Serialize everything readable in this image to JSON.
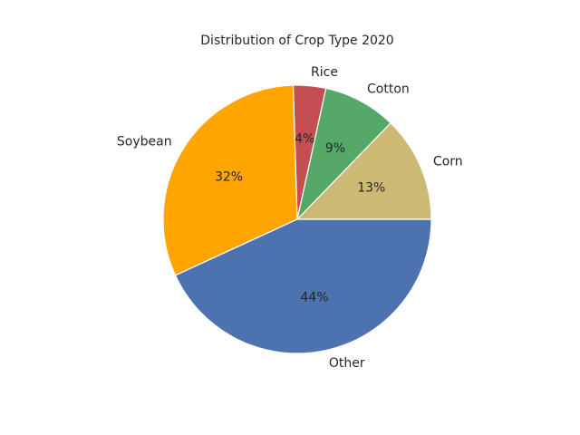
{
  "chart_data": {
    "type": "pie",
    "title": "Distribution of Crop Type 2020",
    "start_angle_deg": 0,
    "direction": "counterclockwise",
    "slices": [
      {
        "label": "Corn",
        "value": 13,
        "pct_label": "13%",
        "color": "#ccb974"
      },
      {
        "label": "Cotton",
        "value": 9,
        "pct_label": "9%",
        "color": "#55a868"
      },
      {
        "label": "Rice",
        "value": 4,
        "pct_label": "4%",
        "color": "#c44e52"
      },
      {
        "label": "Soybean",
        "value": 32,
        "pct_label": "32%",
        "color": "#ffa500"
      },
      {
        "label": "Other",
        "value": 44,
        "pct_label": "44%",
        "color": "#4c72b0"
      }
    ],
    "edge_color": "#ffffff"
  }
}
